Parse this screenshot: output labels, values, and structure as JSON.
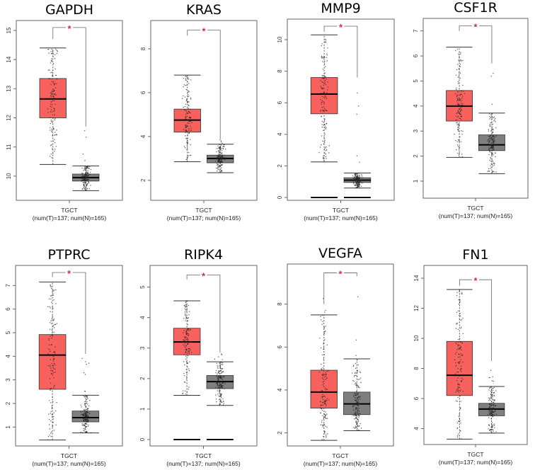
{
  "colors": {
    "tumor": "#f8625e",
    "normal": "#7f7f7f",
    "significance": "#e0283c"
  },
  "chart_data": [
    {
      "type": "box",
      "title": "GAPDH",
      "xlabel": "TGCT",
      "xsublabel": "(num(T)=137; num(N)=165)",
      "significance": "*",
      "ylim": [
        9.17,
        15.34
      ],
      "yticks": [
        10,
        11,
        12,
        13,
        14,
        15
      ],
      "bracket": {
        "top": 15.1,
        "left": 14.7,
        "right": 11.7
      },
      "series": [
        {
          "group": "T",
          "n": 137,
          "whisker_low": 10.4,
          "q1": 12.0,
          "median": 12.65,
          "q3": 13.35,
          "whisker_high": 14.4
        },
        {
          "group": "N",
          "n": 165,
          "whisker_low": 9.5,
          "q1": 9.83,
          "median": 9.95,
          "q3": 10.07,
          "whisker_high": 10.35
        }
      ]
    },
    {
      "type": "box",
      "title": "KRAS",
      "xlabel": "TGCT",
      "xsublabel": "(num(T)=137; num(N)=165)",
      "significance": "*",
      "ylim": [
        1.09,
        9.29
      ],
      "yticks": [
        2,
        4,
        6,
        8
      ],
      "bracket": {
        "top": 8.85,
        "left": 8.6,
        "right": 3.9
      },
      "series": [
        {
          "group": "T",
          "n": 137,
          "whisker_low": 2.85,
          "q1": 4.2,
          "median": 4.75,
          "q3": 5.25,
          "whisker_high": 6.8
        },
        {
          "group": "N",
          "n": 165,
          "whisker_low": 2.35,
          "q1": 2.8,
          "median": 3.0,
          "q3": 3.15,
          "whisker_high": 3.65
        }
      ]
    },
    {
      "type": "box",
      "title": "MMP9",
      "xlabel": "TGCT",
      "xsublabel": "(num(T)=137; num(N)=165)",
      "significance": "*",
      "ylim": [
        -0.18,
        11.3
      ],
      "yticks": [
        0,
        2,
        4,
        6,
        8,
        10
      ],
      "bracket": {
        "top": 10.85,
        "left": 10.5,
        "right": 7.6
      },
      "zero_lines": true,
      "series": [
        {
          "group": "T",
          "n": 137,
          "whisker_low": 2.25,
          "q1": 5.3,
          "median": 6.55,
          "q3": 7.6,
          "whisker_high": 10.3
        },
        {
          "group": "N",
          "n": 165,
          "whisker_low": 0.6,
          "q1": 0.95,
          "median": 1.1,
          "q3": 1.25,
          "whisker_high": 1.55
        }
      ]
    },
    {
      "type": "box",
      "title": "CSF1R",
      "xlabel": "TGCT",
      "xsublabel": "(num(T)=137; num(N)=165)",
      "significance": "*",
      "ylim": [
        0.32,
        7.5
      ],
      "yticks": [
        1,
        2,
        3,
        4,
        5,
        6,
        7
      ],
      "bracket": {
        "top": 7.2,
        "left": 7.0,
        "right": 5.7
      },
      "series": [
        {
          "group": "T",
          "n": 137,
          "whisker_low": 1.95,
          "q1": 3.4,
          "median": 4.0,
          "q3": 4.62,
          "whisker_high": 6.35
        },
        {
          "group": "N",
          "n": 165,
          "whisker_low": 1.3,
          "q1": 2.22,
          "median": 2.45,
          "q3": 2.85,
          "whisker_high": 3.72
        }
      ]
    },
    {
      "type": "box",
      "title": "PTPRC",
      "xlabel": "TGCT",
      "xsublabel": "(num(T)=137; num(N)=165)",
      "significance": "*",
      "ylim": [
        0.2,
        7.85
      ],
      "yticks": [
        1,
        2,
        3,
        4,
        5,
        6,
        7
      ],
      "bracket": {
        "top": 7.55,
        "left": 7.35,
        "right": 4.1
      },
      "series": [
        {
          "group": "T",
          "n": 137,
          "whisker_low": 0.45,
          "q1": 2.6,
          "median": 4.05,
          "q3": 4.92,
          "whisker_high": 7.15
        },
        {
          "group": "N",
          "n": 165,
          "whisker_low": 0.75,
          "q1": 1.22,
          "median": 1.4,
          "q3": 1.68,
          "whisker_high": 2.35
        }
      ]
    },
    {
      "type": "box",
      "title": "RIPK4",
      "xlabel": "TGCT",
      "xsublabel": "(num(T)=137; num(N)=165)",
      "significance": "*",
      "ylim": [
        -0.21,
        5.71
      ],
      "yticks": [
        0,
        1,
        2,
        3,
        4,
        5
      ],
      "bracket": {
        "top": 5.4,
        "left": 5.25,
        "right": 2.85
      },
      "zero_lines": true,
      "series": [
        {
          "group": "T",
          "n": 137,
          "whisker_low": 1.45,
          "q1": 2.78,
          "median": 3.2,
          "q3": 3.65,
          "whisker_high": 4.55
        },
        {
          "group": "N",
          "n": 165,
          "whisker_low": 1.12,
          "q1": 1.67,
          "median": 1.9,
          "q3": 2.1,
          "whisker_high": 2.55
        }
      ]
    },
    {
      "type": "box",
      "title": "VEGFA",
      "xlabel": "TGCT",
      "xsublabel": "(num(T)=137; num(N)=165)",
      "significance": "*",
      "ylim": [
        1.39,
        9.87
      ],
      "yticks": [
        2,
        4,
        6,
        8
      ],
      "bracket": {
        "top": 9.46,
        "left": 8.0,
        "right": 9.3
      },
      "series": [
        {
          "group": "T",
          "n": 137,
          "whisker_low": 1.65,
          "q1": 3.15,
          "median": 3.9,
          "q3": 4.92,
          "whisker_high": 7.5
        },
        {
          "group": "N",
          "n": 165,
          "whisker_low": 2.1,
          "q1": 2.85,
          "median": 3.35,
          "q3": 3.9,
          "whisker_high": 5.45
        }
      ]
    },
    {
      "type": "box",
      "title": "FN1",
      "xlabel": "TGCT",
      "xsublabel": "(num(T)=137; num(N)=165)",
      "significance": "*",
      "ylim": [
        2.94,
        14.85
      ],
      "yticks": [
        4,
        6,
        8,
        10,
        12,
        14
      ],
      "bracket": {
        "top": 13.9,
        "left": 13.5,
        "right": 8.5
      },
      "series": [
        {
          "group": "T",
          "n": 137,
          "whisker_low": 3.3,
          "q1": 6.2,
          "median": 7.55,
          "q3": 9.8,
          "whisker_high": 13.25
        },
        {
          "group": "N",
          "n": 165,
          "whisker_low": 3.7,
          "q1": 4.85,
          "median": 5.3,
          "q3": 5.68,
          "whisker_high": 6.8
        }
      ]
    }
  ]
}
